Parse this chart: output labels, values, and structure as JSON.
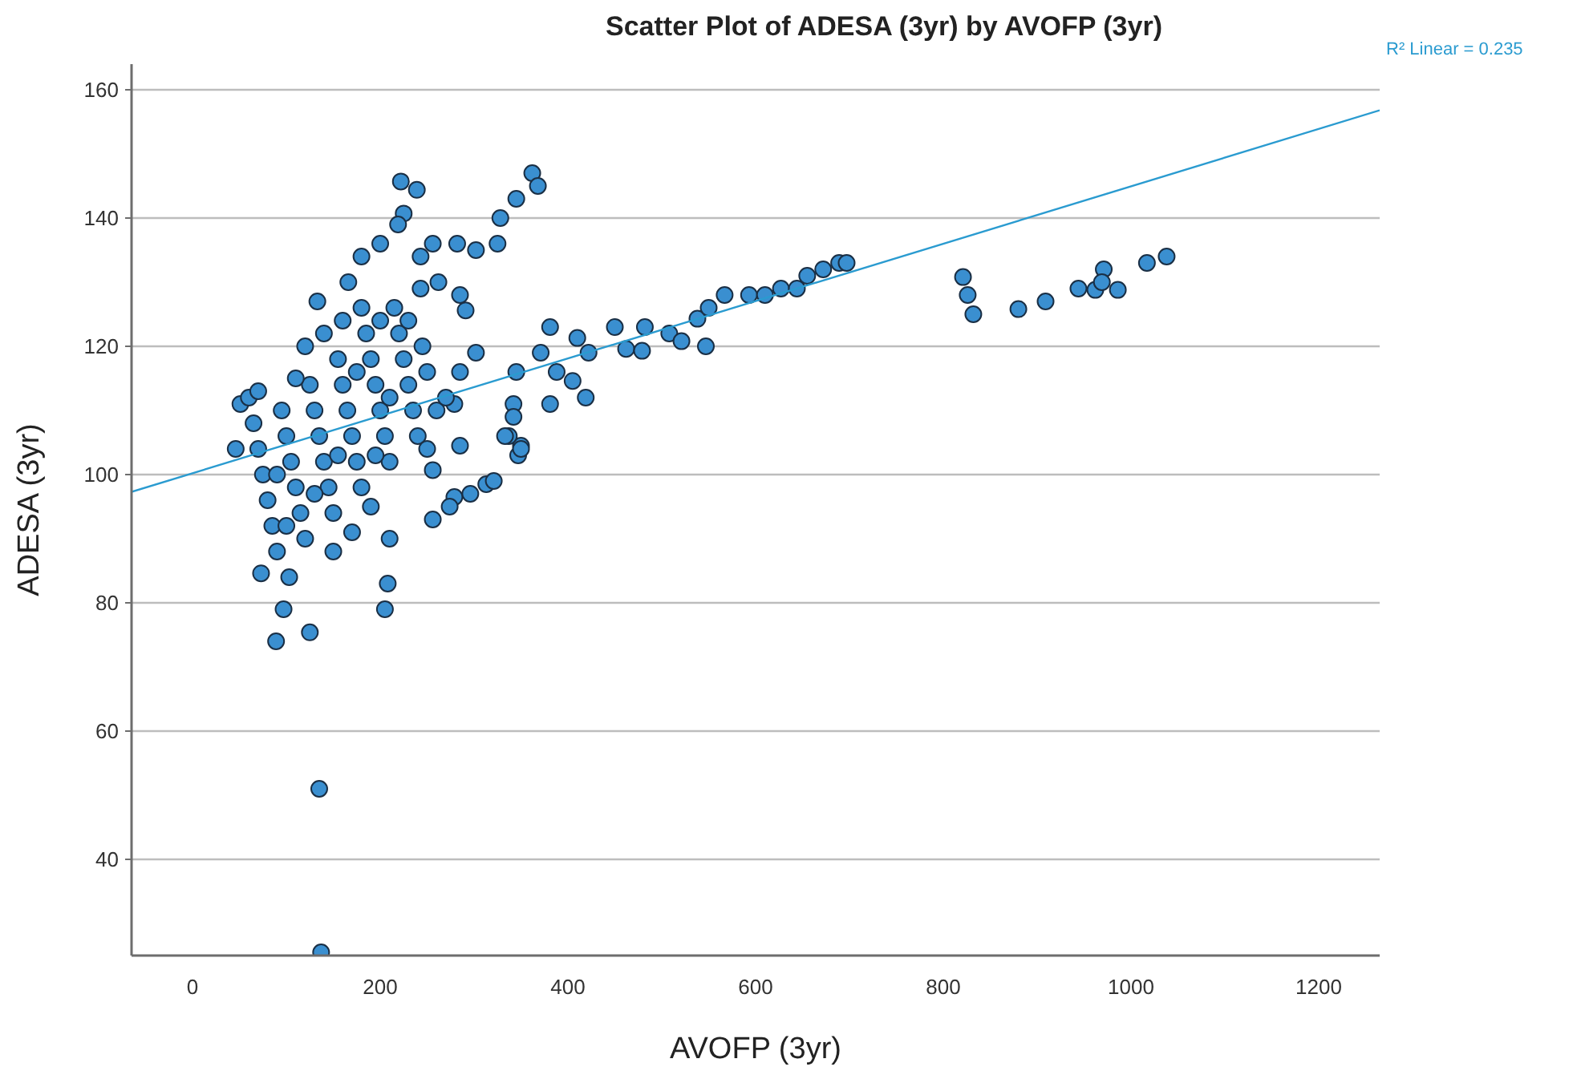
{
  "chart_data": {
    "type": "scatter",
    "title": "Scatter Plot of ADESA (3yr) by AVOFP (3yr)",
    "xlabel": "AVOFP (3yr)",
    "ylabel": "ADESA (3yr)",
    "xlim": [
      -65,
      1265
    ],
    "xticks": [
      0,
      200,
      400,
      600,
      800,
      1000,
      1200
    ],
    "ylim": [
      25,
      164
    ],
    "yticks": [
      40,
      60,
      80,
      100,
      120,
      140,
      160
    ],
    "grid": "y",
    "annotations": [
      "R² Linear = 0.235"
    ],
    "series": [
      {
        "color": "#3a8fd0",
        "marker": "circle",
        "x": [
          222,
          239,
          225,
          219,
          200,
          180,
          166,
          133,
          256,
          282,
          302,
          325,
          328,
          345,
          362,
          368,
          243,
          243,
          262,
          285,
          291,
          302,
          285,
          279,
          285,
          256,
          256,
          279,
          313,
          347,
          350,
          381,
          371,
          388,
          342,
          337,
          210,
          208,
          205,
          89,
          125,
          97,
          73,
          103,
          51,
          46,
          135,
          137,
          60,
          65,
          70,
          75,
          80,
          85,
          90,
          95,
          100,
          105,
          110,
          115,
          120,
          125,
          130,
          135,
          140,
          145,
          150,
          155,
          160,
          165,
          170,
          175,
          180,
          185,
          190,
          195,
          200,
          205,
          210,
          215,
          220,
          225,
          230,
          235,
          240,
          245,
          250,
          120,
          140,
          160,
          180,
          200,
          110,
          130,
          150,
          90,
          70,
          100,
          170,
          190,
          210,
          230,
          250,
          260,
          270,
          155,
          175,
          195,
          410,
          450,
          482,
          508,
          521,
          538,
          550,
          547,
          567,
          593,
          610,
          627,
          644,
          655,
          672,
          689,
          697,
          422,
          462,
          479,
          405,
          419,
          381,
          345,
          342,
          333,
          350,
          321,
          296,
          274,
          821,
          826,
          832,
          880,
          909,
          944,
          962,
          971,
          969,
          986,
          1017,
          1038
        ],
        "values": [
          145.7,
          144.4,
          140.7,
          139,
          136,
          134,
          130,
          127,
          136,
          136,
          135,
          136,
          140,
          143,
          147,
          145,
          134,
          129,
          130,
          128,
          125.6,
          119,
          116,
          111,
          104.5,
          100.7,
          93,
          96.5,
          98.5,
          103,
          104.5,
          123,
          119,
          116,
          111,
          106,
          90,
          83,
          79,
          74,
          75.4,
          79,
          84.6,
          84,
          111,
          104,
          51,
          25.5,
          112,
          108,
          104,
          100,
          96,
          92,
          88,
          110,
          106,
          102,
          98,
          94,
          90,
          114,
          110,
          106,
          102,
          98,
          94,
          118,
          114,
          110,
          106,
          102,
          98,
          122,
          118,
          114,
          110,
          106,
          102,
          126,
          122,
          118,
          114,
          110,
          106,
          120,
          116,
          120,
          122,
          124,
          126,
          124,
          115,
          97,
          88,
          100,
          113,
          92,
          91,
          95,
          112,
          124,
          104,
          110,
          112,
          103,
          116,
          103,
          121.3,
          123,
          123,
          122,
          120.8,
          124.3,
          126,
          120,
          128,
          128,
          128,
          129,
          129,
          131,
          132,
          133,
          133,
          119,
          119.6,
          119.3,
          114.6,
          112,
          111,
          116,
          109,
          106,
          104,
          99,
          97,
          95,
          130.8,
          128,
          125,
          125.8,
          127,
          129,
          128.8,
          132,
          130,
          128.8,
          133,
          134
        ]
      },
      {
        "type": "line",
        "color": "#2a9bd0",
        "marker": "none",
        "x": [
          -65,
          1265
        ],
        "values": [
          97.3,
          156.8
        ]
      }
    ]
  }
}
